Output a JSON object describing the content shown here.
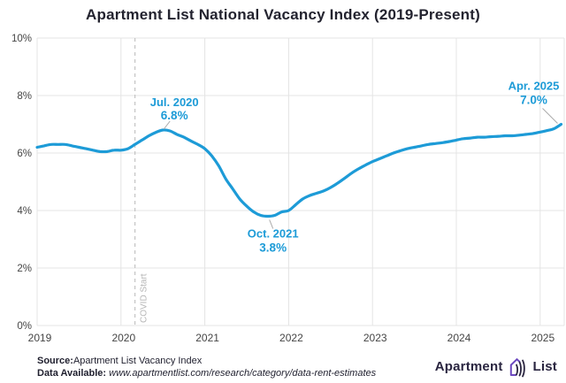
{
  "chart_data": {
    "type": "line",
    "title": "Apartment List National Vacancy Index (2019-Present)",
    "xlabel": "",
    "ylabel": "",
    "x_tick_labels": [
      "2019",
      "2020",
      "2021",
      "2022",
      "2023",
      "2024",
      "2025"
    ],
    "y_tick_labels": [
      "0%",
      "2%",
      "4%",
      "6%",
      "8%",
      "10%"
    ],
    "ylim": [
      0,
      10
    ],
    "grid": true,
    "legend_position": "none",
    "x_start_month": "2019-01",
    "x_end_month": "2025-04",
    "series": [
      {
        "name": "National Vacancy Index (%)",
        "values": [
          6.2,
          6.25,
          6.3,
          6.3,
          6.3,
          6.25,
          6.2,
          6.15,
          6.1,
          6.05,
          6.05,
          6.1,
          6.1,
          6.15,
          6.3,
          6.45,
          6.6,
          6.72,
          6.8,
          6.77,
          6.65,
          6.55,
          6.42,
          6.3,
          6.15,
          5.9,
          5.55,
          5.1,
          4.75,
          4.4,
          4.15,
          3.95,
          3.83,
          3.8,
          3.83,
          3.95,
          4.0,
          4.2,
          4.4,
          4.52,
          4.6,
          4.68,
          4.8,
          4.95,
          5.12,
          5.3,
          5.45,
          5.58,
          5.7,
          5.8,
          5.9,
          6.0,
          6.08,
          6.15,
          6.2,
          6.25,
          6.3,
          6.33,
          6.36,
          6.4,
          6.45,
          6.5,
          6.52,
          6.55,
          6.55,
          6.57,
          6.58,
          6.6,
          6.6,
          6.62,
          6.65,
          6.68,
          6.73,
          6.78,
          6.85,
          7.0
        ]
      }
    ],
    "annotations": [
      {
        "label": "Jul. 2020",
        "value": "6.8%",
        "month_index": 18,
        "dx": 13,
        "dy1": -27,
        "dy2": -12,
        "leader": [
          8,
          -10,
          1,
          -1
        ]
      },
      {
        "label": "Oct. 2021",
        "value": "3.8%",
        "month_index": 33,
        "dx": 6,
        "dy1": 24,
        "dy2": 40,
        "leader": [
          2,
          4,
          6,
          14
        ]
      },
      {
        "label": "Apr. 2025",
        "value": "7.0%",
        "month_index": 75,
        "dx": -31,
        "dy1": -39,
        "dy2": -23,
        "leader": [
          -21,
          -18,
          -4,
          -1
        ]
      }
    ],
    "covid_marker": {
      "label": "COVID Start",
      "month_index": 14
    }
  },
  "colors": {
    "line": "#1d9bd7",
    "annotation": "#1d9bd7",
    "grid": "#e4e4e4",
    "tick_text": "#454545",
    "leader": "#a9a9a9",
    "covid_line": "#c4c4c4",
    "covid_text": "#b5b5b5",
    "title_text": "#23232f",
    "logo_navy": "#2a2540",
    "logo_purple": "#6d4ac0"
  },
  "footer": {
    "source_label": "Source:",
    "source_value": "Apartment List Vacancy Index",
    "data_label": "Data Available:",
    "data_value": "www.apartmentlist.com/research/category/data-rent-estimates"
  },
  "logo": {
    "word1": "Apartment",
    "word2": "List"
  }
}
